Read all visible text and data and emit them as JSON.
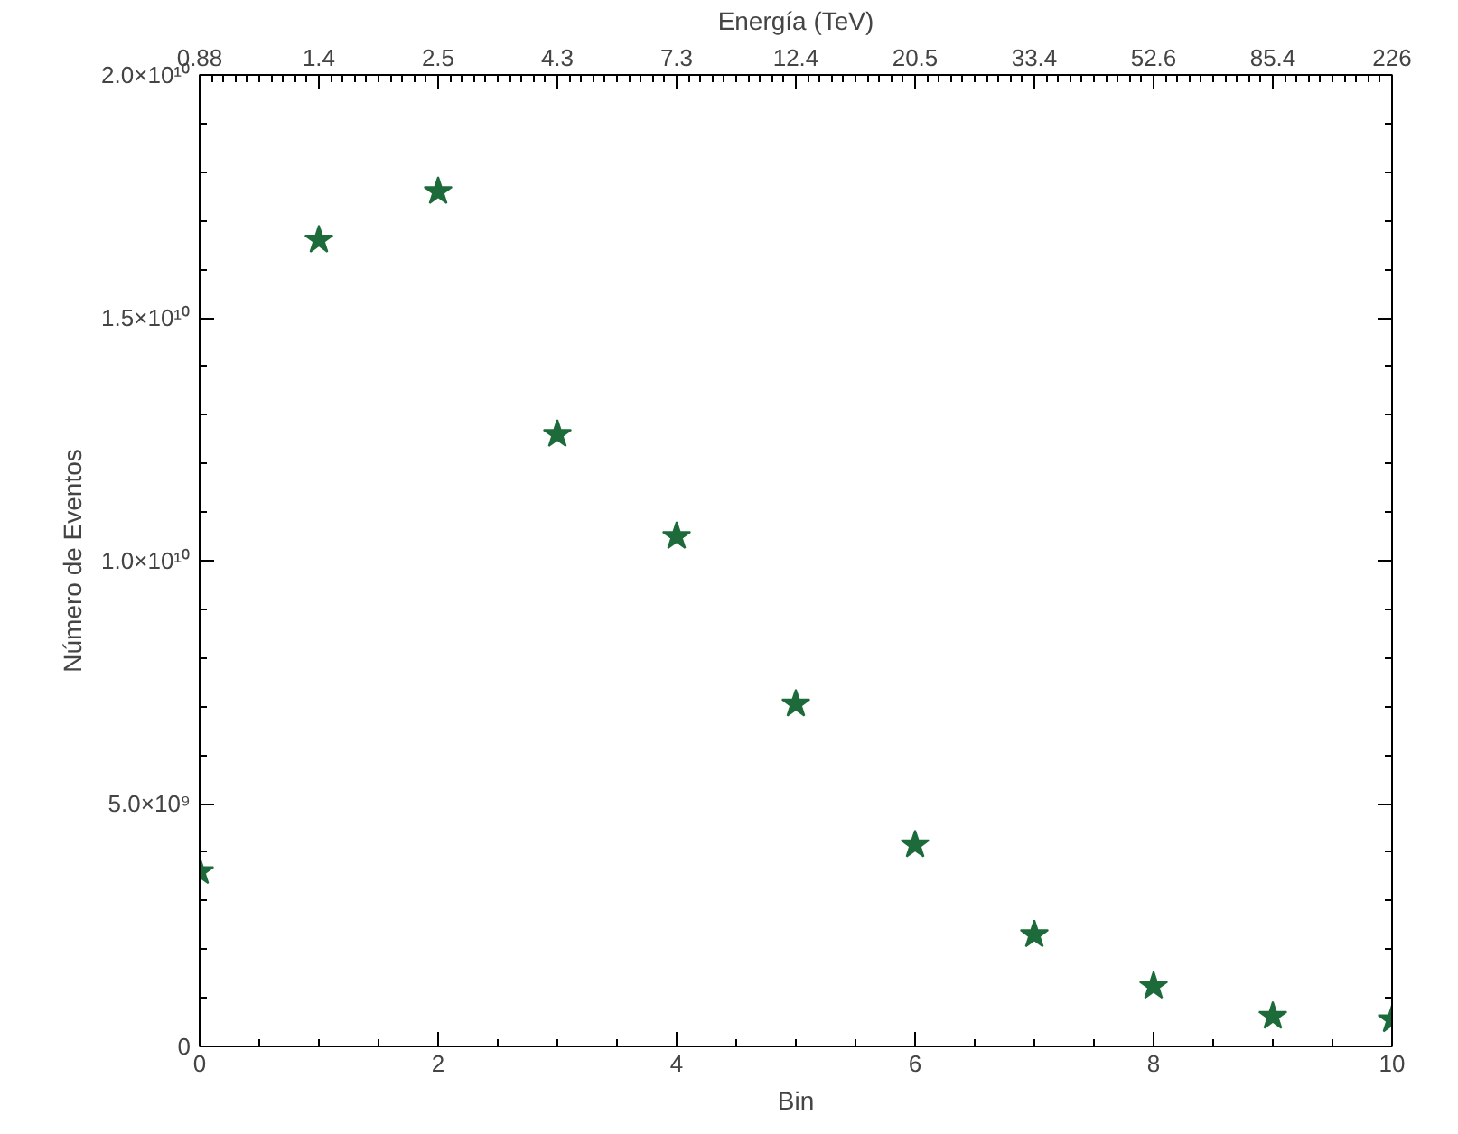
{
  "chart_data": {
    "type": "scatter",
    "xlabel": "Bin",
    "ylabel": "Número de Eventos",
    "x2label": "Energía (TeV)",
    "x": [
      0,
      1,
      2,
      3,
      4,
      5,
      6,
      7,
      8,
      9,
      10
    ],
    "series": [
      {
        "color": "#1d6b3a",
        "values": [
          3600000000.0,
          16600000000.0,
          17600000000.0,
          12600000000.0,
          10500000000.0,
          7050000000.0,
          4150000000.0,
          2300000000.0,
          1240000000.0,
          620000000.0,
          550000000.0
        ]
      }
    ],
    "marker": "star",
    "grid": false,
    "xlim": [
      0,
      10
    ],
    "xticks": [
      0,
      2,
      4,
      6,
      8,
      10
    ],
    "annotations": [
      "0.88",
      "1.4",
      "2.5",
      "4.3",
      "7.3",
      "12.4",
      "20.5",
      "33.4",
      "52.6",
      "85.4",
      "226"
    ],
    "ylim": [
      0,
      20000000000.0
    ],
    "yticks": [
      {
        "value": 0,
        "label": "0"
      },
      {
        "value": 5000000000.0,
        "label": "5.0×10⁹"
      },
      {
        "value": 10000000000.0,
        "label": "1.0×10¹⁰"
      },
      {
        "value": 15000000000.0,
        "label": "1.5×10¹⁰"
      },
      {
        "value": 20000000000.0,
        "label": "2.0×10¹⁰"
      }
    ]
  }
}
